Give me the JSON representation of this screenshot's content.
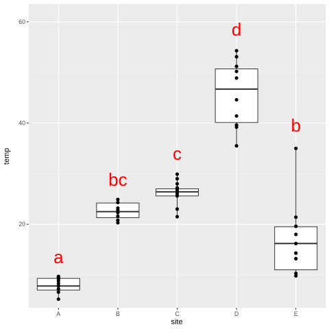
{
  "chart_data": {
    "type": "box",
    "xlabel": "site",
    "ylabel": "temp",
    "categories": [
      "A",
      "B",
      "C",
      "D",
      "E"
    ],
    "ylim": [
      3.5,
      63.5
    ],
    "yticks": [
      20,
      40,
      60
    ],
    "grid": true,
    "boxes": [
      {
        "site": "A",
        "min": 5.2,
        "q1": 7.0,
        "median": 7.8,
        "q3": 9.3,
        "max": 9.7,
        "points": [
          5.2,
          6.6,
          7.2,
          7.8,
          8.3,
          8.8,
          9.2,
          9.5,
          9.7
        ]
      },
      {
        "site": "B",
        "min": 20.3,
        "q1": 21.3,
        "median": 22.5,
        "q3": 24.2,
        "max": 24.9,
        "points": [
          20.3,
          20.8,
          21.6,
          22.3,
          22.8,
          23.2,
          24.3,
          24.9
        ]
      },
      {
        "site": "C",
        "min": 21.5,
        "q1": 25.6,
        "median": 26.4,
        "q3": 27.0,
        "max": 29.9,
        "points": [
          21.5,
          23.0,
          25.6,
          26.0,
          26.4,
          26.8,
          27.2,
          28.0,
          29.0,
          29.9
        ]
      },
      {
        "site": "D",
        "min": 35.5,
        "q1": 40.1,
        "median": 46.7,
        "q3": 50.7,
        "max": 54.3,
        "points": [
          35.5,
          39.2,
          39.6,
          41.4,
          44.6,
          48.9,
          50.2,
          51.2,
          53.1,
          54.3
        ]
      },
      {
        "site": "E",
        "min": 9.8,
        "q1": 11.0,
        "median": 16.2,
        "q3": 19.5,
        "max": 35.0,
        "points": [
          9.8,
          10.3,
          13.2,
          14.3,
          16.2,
          18.0,
          19.6,
          21.4,
          35.0
        ]
      }
    ],
    "letters": [
      {
        "site": "A",
        "text": "a",
        "y": 13.5
      },
      {
        "site": "B",
        "text": "bc",
        "y": 28.8
      },
      {
        "site": "C",
        "text": "c",
        "y": 34.0
      },
      {
        "site": "D",
        "text": "d",
        "y": 58.5
      },
      {
        "site": "E",
        "text": "b",
        "y": 39.5
      }
    ],
    "colors": {
      "panel": "#ebebeb",
      "grid_major": "#ffffff",
      "grid_minor": "#f5f5f5",
      "box_fill": "#ffffff",
      "outline": "#333333",
      "points": "#000000",
      "letters": "#ff0000"
    }
  }
}
